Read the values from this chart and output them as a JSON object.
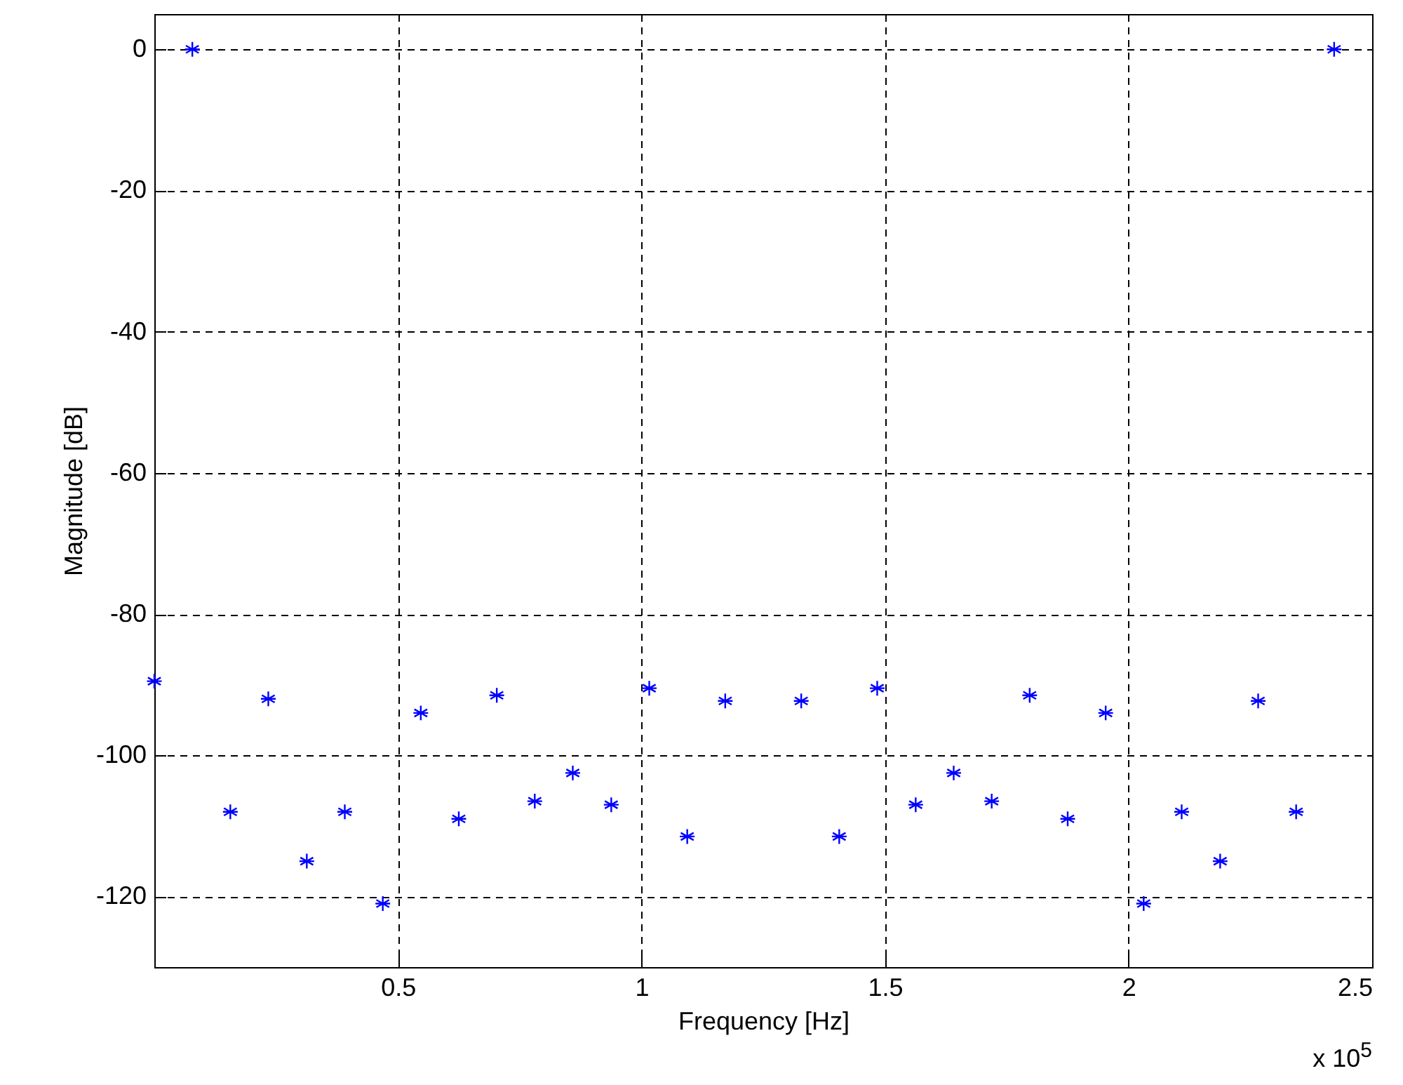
{
  "chart_data": {
    "type": "scatter",
    "xlabel": "Frequency [Hz]",
    "ylabel": "Magnitude [dB]",
    "x": [
      0,
      0.078,
      0.156,
      0.234,
      0.313,
      0.391,
      0.469,
      0.547,
      0.625,
      0.703,
      0.781,
      0.859,
      0.938,
      1.016,
      1.094,
      1.172,
      1.328,
      1.406,
      1.484,
      1.563,
      1.641,
      1.719,
      1.797,
      1.875,
      1.953,
      2.031,
      2.109,
      2.188,
      2.266,
      2.344,
      2.422
    ],
    "series": [
      {
        "color": "#0000ff",
        "values": [
          -89.5,
          0,
          -108,
          -92,
          -115,
          -108,
          -121,
          -94,
          -109,
          -91.5,
          -106.5,
          -102.5,
          -107,
          -90.5,
          -111.5,
          -92.3,
          -92.3,
          -111.5,
          -90.5,
          -107,
          -102.5,
          -106.5,
          -91.5,
          -109,
          -94,
          -121,
          -108,
          -115,
          -92.3,
          -108,
          0
        ]
      }
    ],
    "xlim": [
      0,
      2.5
    ],
    "xticks": [
      0.5,
      1,
      1.5,
      2,
      2.5
    ],
    "ylim": [
      -130,
      5
    ],
    "yticks": [
      -120,
      -100,
      -80,
      -60,
      -40,
      -20,
      0
    ],
    "grid": true,
    "marker": "cross",
    "annotations": [
      "x 10$^{5}$"
    ]
  }
}
